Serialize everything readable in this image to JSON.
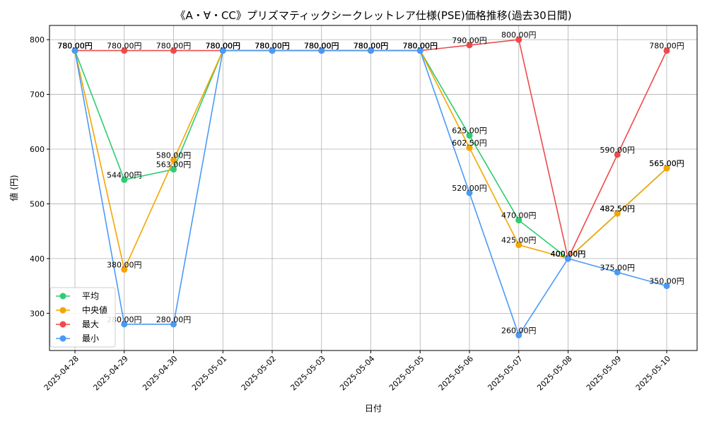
{
  "chart_data": {
    "type": "line",
    "title": "《A・∀・CC》プリズマティックシークレットレア仕様(PSE)価格推移(過去30日間)",
    "xlabel": "日付",
    "ylabel": "値 (円)",
    "ylim": [
      232,
      826
    ],
    "yticks": [
      300,
      400,
      500,
      600,
      700,
      800
    ],
    "grid": true,
    "legend_position": "bottom-left",
    "value_suffix": "円",
    "x": [
      "2025-04-28",
      "2025-04-29",
      "2025-04-30",
      "2025-05-01",
      "2025-05-02",
      "2025-05-03",
      "2025-05-04",
      "2025-05-05",
      "2025-05-06",
      "2025-05-07",
      "2025-05-08",
      "2025-05-09",
      "2025-05-10"
    ],
    "series": [
      {
        "name": "平均",
        "color": "#2ecc71",
        "values": [
          780,
          544,
          563,
          780,
          780,
          780,
          780,
          780,
          625,
          470,
          400,
          482.5,
          565
        ]
      },
      {
        "name": "中央値",
        "color": "#f5a500",
        "values": [
          780,
          380,
          580,
          780,
          780,
          780,
          780,
          780,
          602.5,
          425,
          400,
          482.5,
          565
        ]
      },
      {
        "name": "最大",
        "color": "#ef4a4a",
        "values": [
          780,
          780,
          780,
          780,
          780,
          780,
          780,
          780,
          790,
          800,
          400,
          590,
          780
        ]
      },
      {
        "name": "最小",
        "color": "#4a9af5",
        "values": [
          780,
          280,
          280,
          780,
          780,
          780,
          780,
          780,
          520,
          260,
          400,
          375,
          350
        ]
      }
    ]
  }
}
